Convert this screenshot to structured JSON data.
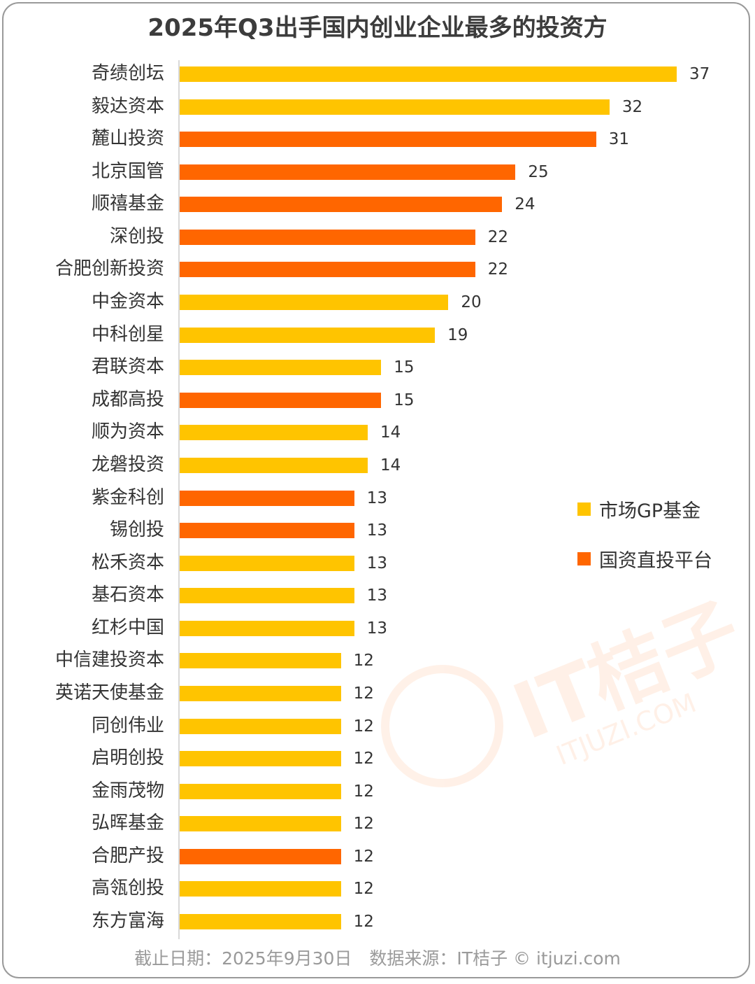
{
  "chart_data": {
    "type": "bar",
    "orientation": "horizontal",
    "title": "2025年Q3出手国内创业企业最多的投资方",
    "categories": [
      "奇绩创坛",
      "毅达资本",
      "麓山投资",
      "北京国管",
      "顺禧基金",
      "深创投",
      "合肥创新投资",
      "中金资本",
      "中科创星",
      "君联资本",
      "成都高投",
      "顺为资本",
      "龙磐投资",
      "紫金科创",
      "锡创投",
      "松禾资本",
      "基石资本",
      "红杉中国",
      "中信建投资本",
      "英诺天使基金",
      "同创伟业",
      "启明创投",
      "金雨茂物",
      "弘晖基金",
      "合肥产投",
      "高瓴创投",
      "东方富海"
    ],
    "values": [
      37,
      32,
      31,
      25,
      24,
      22,
      22,
      20,
      19,
      15,
      15,
      14,
      14,
      13,
      13,
      13,
      13,
      13,
      12,
      12,
      12,
      12,
      12,
      12,
      12,
      12,
      12
    ],
    "groups": [
      "market",
      "market",
      "state",
      "state",
      "state",
      "state",
      "state",
      "market",
      "market",
      "market",
      "state",
      "market",
      "market",
      "state",
      "state",
      "market",
      "market",
      "market",
      "market",
      "market",
      "market",
      "market",
      "market",
      "market",
      "state",
      "market",
      "market"
    ],
    "series": [
      {
        "key": "market",
        "name": "市场GP基金",
        "color": "#FFC400"
      },
      {
        "key": "state",
        "name": "国资直投平台",
        "color": "#FF6600"
      }
    ],
    "xlim": [
      0,
      37
    ],
    "legend_position": "right",
    "grid": false
  },
  "watermark": {
    "brand": "IT桔子",
    "site": "ITJUZI.COM"
  },
  "footer": "截止日期：2025年9月30日　数据来源：IT桔子 © itjuzi.com"
}
